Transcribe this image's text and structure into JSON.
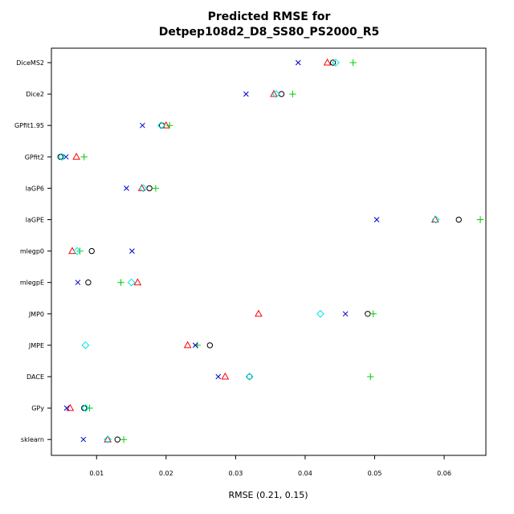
{
  "chart_data": {
    "type": "scatter",
    "title": [
      "Predicted RMSE for",
      "Detpep108d2_D8_SS80_PS2000_R5"
    ],
    "xlabel": "RMSE (0.21, 0.15)",
    "ylabel": "",
    "xlim": [
      0.0035,
      0.066
    ],
    "x_ticks": [
      {
        "value": 0.01,
        "label": "0.01"
      },
      {
        "value": 0.02,
        "label": "0.02"
      },
      {
        "value": 0.03,
        "label": "0.03"
      },
      {
        "value": 0.04,
        "label": "0.04"
      },
      {
        "value": 0.05,
        "label": "0.05"
      },
      {
        "value": 0.06,
        "label": "0.06"
      }
    ],
    "grid": false,
    "categories": [
      "DiceMS2",
      "Dice2",
      "GPfit1.95",
      "GPfit2",
      "laGP6",
      "laGPE",
      "mlegp0",
      "mlegpE",
      "JMP0",
      "JMPE",
      "DACE",
      "GPy",
      "sklearn"
    ],
    "series": [
      {
        "marker": "circle",
        "color": "#000000",
        "values": [
          0.044,
          0.0366,
          0.0194,
          0.0048,
          0.0176,
          0.0621,
          0.0093,
          0.0088,
          0.049,
          0.0263,
          0.032,
          0.0082,
          0.013
        ]
      },
      {
        "marker": "triangle",
        "color": "#ff0000",
        "values": [
          0.0432,
          0.0355,
          0.02,
          0.0071,
          0.0165,
          0.0587,
          0.0065,
          0.0159,
          0.0333,
          0.0231,
          0.0285,
          0.0062,
          0.0116
        ]
      },
      {
        "marker": "plus",
        "color": "#00cc00",
        "values": [
          0.0469,
          0.0382,
          0.0205,
          0.0082,
          0.0185,
          0.0652,
          0.0076,
          0.0135,
          0.0498,
          0.0245,
          0.0494,
          0.009,
          0.0139
        ]
      },
      {
        "marker": "x",
        "color": "#0000cc",
        "values": [
          0.039,
          0.0315,
          0.0166,
          0.0056,
          0.0143,
          0.0503,
          0.0151,
          0.0073,
          0.0458,
          0.0242,
          0.0275,
          0.0057,
          0.0081
        ]
      },
      {
        "marker": "diamond",
        "color": "#00e5e5",
        "values": [
          0.0444,
          0.0358,
          0.0193,
          0.005,
          0.0167,
          0.0588,
          0.0072,
          0.015,
          0.0422,
          0.0084,
          0.032,
          0.0084,
          0.0116
        ]
      }
    ]
  }
}
